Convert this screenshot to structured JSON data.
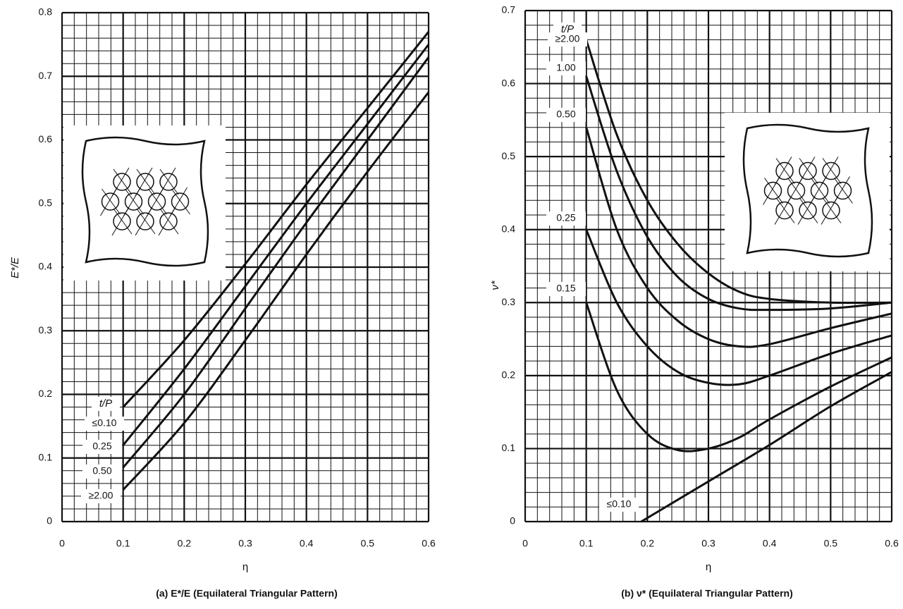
{
  "chart_data": [
    {
      "type": "line",
      "title": "(a) E*/E (Equilateral Triangular Pattern)",
      "x_label": "η",
      "y_label": "E*/E",
      "legend_title": "t/P",
      "xlim": [
        0,
        0.6
      ],
      "ylim": [
        0,
        0.8
      ],
      "xticks": [
        0,
        0.1,
        0.2,
        0.3,
        0.4,
        0.5,
        0.6
      ],
      "yticks": [
        0,
        0.1,
        0.2,
        0.3,
        0.4,
        0.5,
        0.6,
        0.7,
        0.8
      ],
      "minor_xticks": [
        0,
        0.02,
        0.04,
        0.06,
        0.08,
        0.1,
        0.12,
        0.14,
        0.16,
        0.18,
        0.2,
        0.22,
        0.24,
        0.26,
        0.28,
        0.3,
        0.32,
        0.34,
        0.36,
        0.38,
        0.4,
        0.42,
        0.44,
        0.46,
        0.48,
        0.5,
        0.52,
        0.54,
        0.56,
        0.58,
        0.6
      ],
      "minor_yticks": [
        0,
        0.02,
        0.04,
        0.06,
        0.08,
        0.1,
        0.12,
        0.14,
        0.16,
        0.18,
        0.2,
        0.22,
        0.24,
        0.26,
        0.28,
        0.3,
        0.32,
        0.34,
        0.36,
        0.38,
        0.4,
        0.42,
        0.44,
        0.46,
        0.48,
        0.5,
        0.52,
        0.54,
        0.56,
        0.58,
        0.6,
        0.62,
        0.64,
        0.66,
        0.68,
        0.7,
        0.72,
        0.74,
        0.76,
        0.78,
        0.8
      ],
      "grid": true,
      "color": "#111",
      "series": [
        {
          "name": "≤0.10",
          "x": [
            0.1,
            0.2,
            0.3,
            0.4,
            0.5,
            0.6
          ],
          "values": [
            0.18,
            0.285,
            0.405,
            0.53,
            0.65,
            0.77
          ]
        },
        {
          "name": "0.25",
          "x": [
            0.1,
            0.2,
            0.3,
            0.4,
            0.5,
            0.6
          ],
          "values": [
            0.12,
            0.24,
            0.37,
            0.5,
            0.625,
            0.75
          ]
        },
        {
          "name": "0.50",
          "x": [
            0.1,
            0.2,
            0.3,
            0.4,
            0.5,
            0.6
          ],
          "values": [
            0.085,
            0.2,
            0.335,
            0.47,
            0.6,
            0.73
          ]
        },
        {
          "name": "≥2.00",
          "x": [
            0.1,
            0.2,
            0.3,
            0.4,
            0.5,
            0.6
          ],
          "values": [
            0.05,
            0.155,
            0.285,
            0.42,
            0.55,
            0.675
          ]
        }
      ]
    },
    {
      "type": "line",
      "title": "(b) ν* (Equilateral Triangular Pattern)",
      "x_label": "η",
      "y_label": "ν*",
      "legend_title": "t/P",
      "xlim": [
        0,
        0.6
      ],
      "ylim": [
        0,
        0.7
      ],
      "xticks": [
        0,
        0.1,
        0.2,
        0.3,
        0.4,
        0.5,
        0.6
      ],
      "yticks": [
        0,
        0.1,
        0.2,
        0.3,
        0.4,
        0.5,
        0.6,
        0.7
      ],
      "minor_xticks": [
        0,
        0.02,
        0.04,
        0.06,
        0.08,
        0.1,
        0.12,
        0.14,
        0.16,
        0.18,
        0.2,
        0.22,
        0.24,
        0.26,
        0.28,
        0.3,
        0.32,
        0.34,
        0.36,
        0.38,
        0.4,
        0.42,
        0.44,
        0.46,
        0.48,
        0.5,
        0.52,
        0.54,
        0.56,
        0.58,
        0.6
      ],
      "minor_yticks": [
        0,
        0.02,
        0.04,
        0.06,
        0.08,
        0.1,
        0.12,
        0.14,
        0.16,
        0.18,
        0.2,
        0.22,
        0.24,
        0.26,
        0.28,
        0.3,
        0.32,
        0.34,
        0.36,
        0.38,
        0.4,
        0.42,
        0.44,
        0.46,
        0.48,
        0.5,
        0.52,
        0.54,
        0.56,
        0.58,
        0.6,
        0.62,
        0.64,
        0.66,
        0.68,
        0.7
      ],
      "grid": true,
      "color": "#111",
      "series": [
        {
          "name": "≥2.00",
          "x": [
            0.1,
            0.15,
            0.2,
            0.25,
            0.3,
            0.35,
            0.4,
            0.5,
            0.6
          ],
          "values": [
            0.66,
            0.53,
            0.44,
            0.38,
            0.34,
            0.315,
            0.305,
            0.3,
            0.3
          ]
        },
        {
          "name": "1.00",
          "x": [
            0.1,
            0.15,
            0.2,
            0.25,
            0.3,
            0.35,
            0.4,
            0.5,
            0.6
          ],
          "values": [
            0.61,
            0.48,
            0.39,
            0.335,
            0.305,
            0.292,
            0.29,
            0.292,
            0.3
          ]
        },
        {
          "name": "0.50",
          "x": [
            0.1,
            0.15,
            0.2,
            0.25,
            0.3,
            0.35,
            0.4,
            0.5,
            0.6
          ],
          "values": [
            0.54,
            0.4,
            0.32,
            0.275,
            0.25,
            0.24,
            0.243,
            0.265,
            0.285
          ]
        },
        {
          "name": "0.25",
          "x": [
            0.1,
            0.15,
            0.2,
            0.25,
            0.3,
            0.35,
            0.4,
            0.5,
            0.6
          ],
          "values": [
            0.4,
            0.3,
            0.24,
            0.205,
            0.19,
            0.188,
            0.2,
            0.23,
            0.255
          ]
        },
        {
          "name": "0.15",
          "x": [
            0.1,
            0.15,
            0.2,
            0.25,
            0.3,
            0.35,
            0.4,
            0.5,
            0.6
          ],
          "values": [
            0.3,
            0.18,
            0.12,
            0.098,
            0.1,
            0.115,
            0.14,
            0.185,
            0.225
          ]
        },
        {
          "name": "≤0.10",
          "x": [
            0.19,
            0.3,
            0.4,
            0.5,
            0.6
          ],
          "values": [
            0,
            0.055,
            0.105,
            0.158,
            0.205
          ]
        }
      ]
    }
  ]
}
